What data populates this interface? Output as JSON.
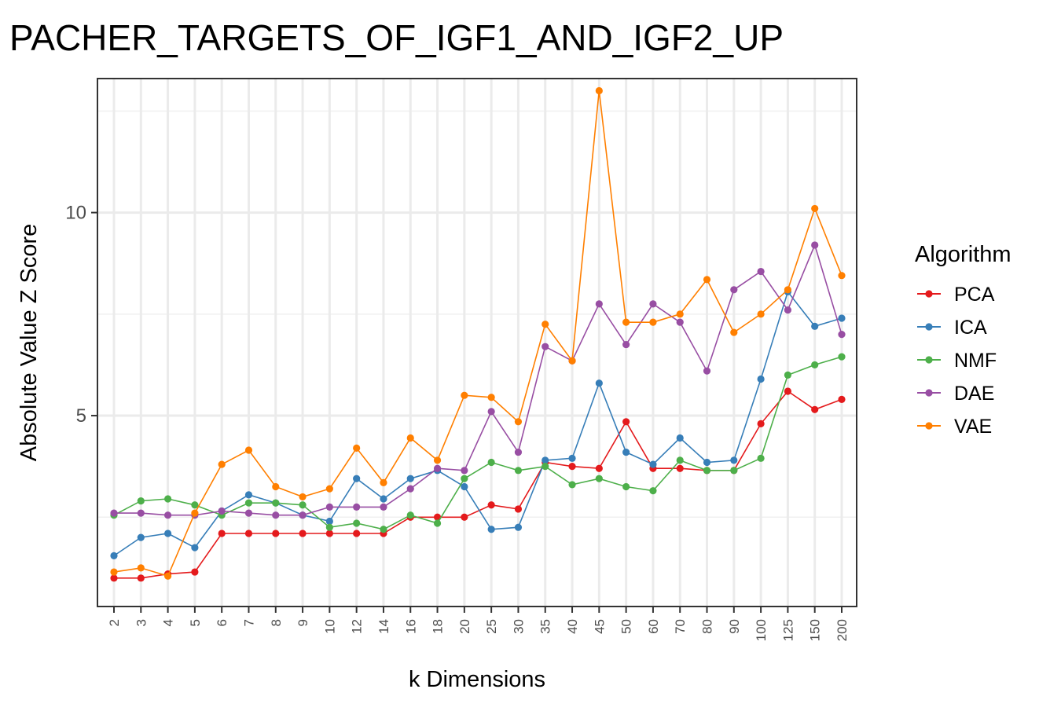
{
  "chart_data": {
    "type": "line",
    "title": "PACHER_TARGETS_OF_IGF1_AND_IGF2_UP",
    "xlabel": "k Dimensions",
    "ylabel": "Absolute Value Z Score",
    "categories": [
      "2",
      "3",
      "4",
      "5",
      "6",
      "7",
      "8",
      "9",
      "10",
      "12",
      "14",
      "16",
      "18",
      "20",
      "25",
      "30",
      "35",
      "40",
      "45",
      "50",
      "60",
      "70",
      "80",
      "90",
      "100",
      "125",
      "150",
      "200"
    ],
    "ylim": [
      0.3,
      13.3
    ],
    "yticks": [
      5,
      10
    ],
    "grid": true,
    "legend": {
      "title": "Algorithm",
      "position": "right"
    },
    "series": [
      {
        "name": "PCA",
        "color": "#E41A1C",
        "values": [
          1.0,
          1.0,
          1.1,
          1.15,
          2.1,
          2.1,
          2.1,
          2.1,
          2.1,
          2.1,
          2.1,
          2.5,
          2.5,
          2.5,
          2.8,
          2.7,
          3.85,
          3.75,
          3.7,
          4.85,
          3.7,
          3.7,
          3.65,
          3.65,
          4.8,
          5.6,
          5.15,
          5.4
        ]
      },
      {
        "name": "ICA",
        "color": "#377EB8",
        "values": [
          1.55,
          2.0,
          2.1,
          1.75,
          2.65,
          3.05,
          2.85,
          2.55,
          2.4,
          3.45,
          2.95,
          3.45,
          3.65,
          3.25,
          2.2,
          2.25,
          3.9,
          3.95,
          5.8,
          4.1,
          3.8,
          4.45,
          3.85,
          3.9,
          5.9,
          8.05,
          7.2,
          7.4
        ]
      },
      {
        "name": "NMF",
        "color": "#4DAF4A",
        "values": [
          2.55,
          2.9,
          2.95,
          2.8,
          2.55,
          2.85,
          2.85,
          2.8,
          2.25,
          2.35,
          2.2,
          2.55,
          2.35,
          3.45,
          3.85,
          3.65,
          3.75,
          3.3,
          3.45,
          3.25,
          3.15,
          3.9,
          3.65,
          3.65,
          3.95,
          6.0,
          6.25,
          6.45
        ]
      },
      {
        "name": "DAE",
        "color": "#984EA3",
        "values": [
          2.6,
          2.6,
          2.55,
          2.55,
          2.65,
          2.6,
          2.55,
          2.55,
          2.75,
          2.75,
          2.75,
          3.2,
          3.7,
          3.65,
          5.1,
          4.1,
          6.7,
          6.35,
          7.75,
          6.75,
          7.75,
          7.3,
          6.1,
          8.1,
          8.55,
          7.6,
          9.2,
          7.0
        ]
      },
      {
        "name": "VAE",
        "color": "#FF7F00",
        "values": [
          1.15,
          1.25,
          1.05,
          2.6,
          3.8,
          4.15,
          3.25,
          3.0,
          3.2,
          4.2,
          3.35,
          4.45,
          3.9,
          5.5,
          5.45,
          4.85,
          7.25,
          6.35,
          13.0,
          7.3,
          7.3,
          7.5,
          8.35,
          7.05,
          7.5,
          8.1,
          10.1,
          8.45
        ]
      }
    ]
  }
}
